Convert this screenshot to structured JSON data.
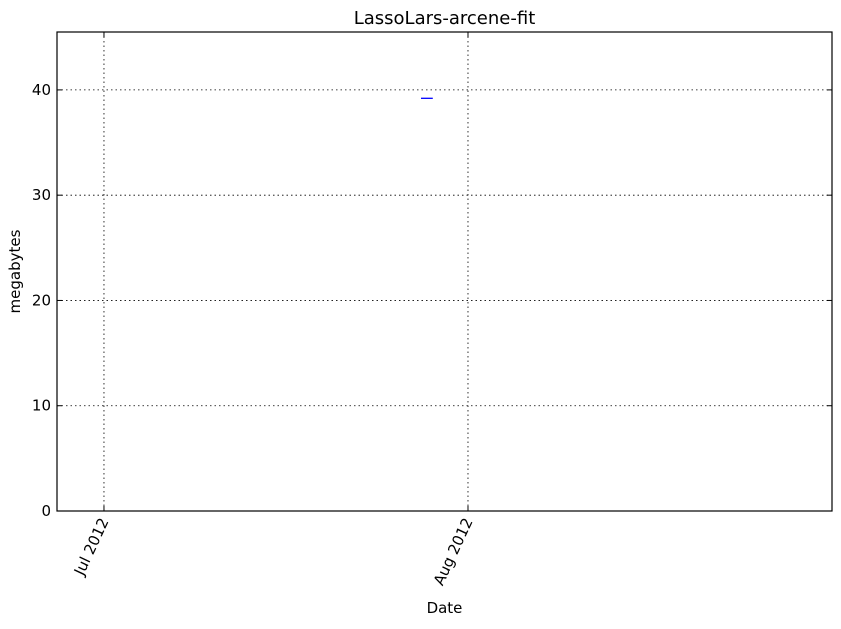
{
  "chart_data": {
    "type": "line",
    "title": "LassoLars-arcene-fit",
    "xlabel": "Date",
    "ylabel": "megabytes",
    "x_axis_type": "date",
    "xlim": [
      "2012-06-27",
      "2012-09-01"
    ],
    "ylim": [
      0,
      45.5
    ],
    "x_ticks": [
      {
        "date": "2012-07-01",
        "label": "Jul 2012"
      },
      {
        "date": "2012-08-01",
        "label": "Aug 2012"
      }
    ],
    "y_ticks": [
      0,
      10,
      20,
      30,
      40
    ],
    "grid": true,
    "series": [
      {
        "color": "#0000ff",
        "points": [
          {
            "x": "2012-07-28",
            "y": 39.2
          },
          {
            "x": "2012-07-29",
            "y": 39.2
          }
        ]
      }
    ]
  }
}
